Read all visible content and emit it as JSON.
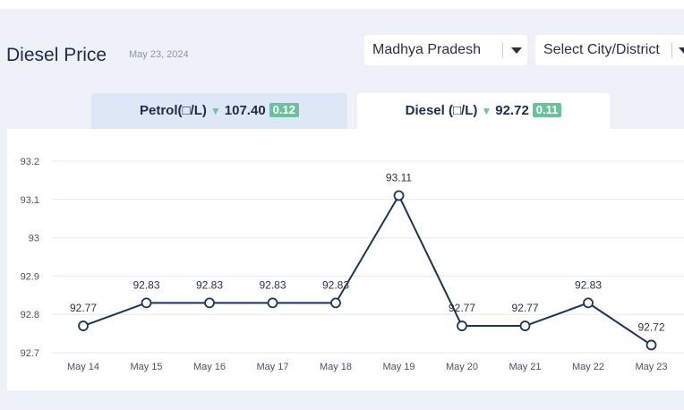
{
  "header": {
    "title": "Diesel Price",
    "date": "May 23, 2024",
    "state_select": "Madhya Pradesh",
    "city_select": "Select City/District"
  },
  "tabs": [
    {
      "label": "Petrol(□/L)",
      "price": "107.40",
      "change": "0.12",
      "active": false
    },
    {
      "label": "Diesel (□/L)",
      "price": "92.72",
      "change": "0.11",
      "active": true
    }
  ],
  "colors": {
    "line": "#1c3557",
    "change_badge": "#69c29b",
    "down_arrow": "#6cc5a0",
    "petrol_tab": "#dde7f5"
  },
  "chart_data": {
    "type": "line",
    "categories": [
      "May 14",
      "May 15",
      "May 16",
      "May 17",
      "May 18",
      "May 19",
      "May 20",
      "May 21",
      "May 22",
      "May 23"
    ],
    "values": [
      92.77,
      92.83,
      92.83,
      92.83,
      92.83,
      93.11,
      92.77,
      92.77,
      92.83,
      92.72
    ],
    "data_labels": [
      "92.77",
      "92.83",
      "92.83",
      "92.83",
      "92.83",
      "93.11",
      "92.77",
      "92.77",
      "92.83",
      "92.72"
    ],
    "yticks": [
      "92.7",
      "92.8",
      "92.9",
      "93",
      "93.1",
      "93.2"
    ],
    "ylim": [
      92.7,
      93.2
    ],
    "grid": true,
    "legend": "none"
  }
}
